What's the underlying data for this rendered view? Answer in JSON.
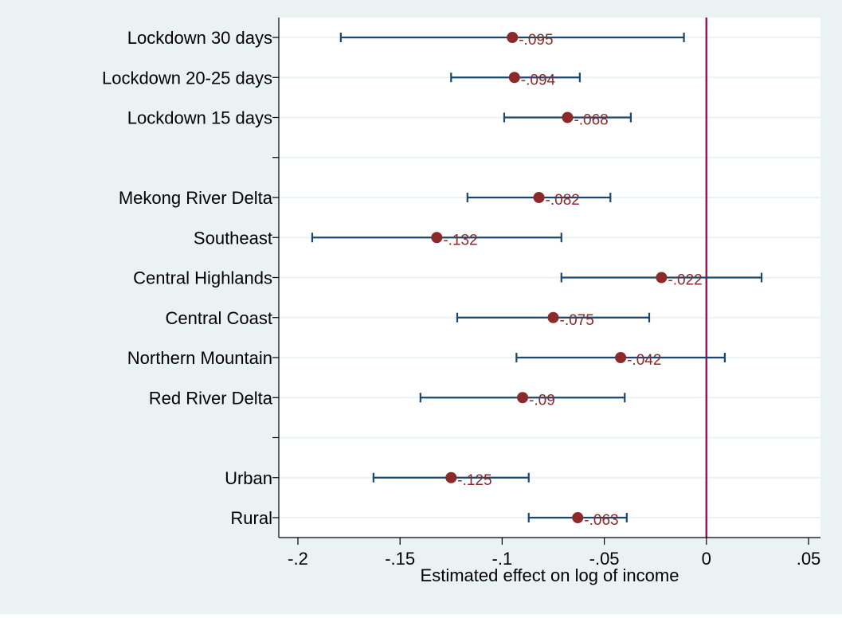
{
  "chart_data": {
    "type": "coefficient_plot",
    "xlabel": "Estimated effect on log of income",
    "xlim": [
      -0.2,
      0.05
    ],
    "x_ticks": [
      {
        "value": -0.2,
        "label": "-.2"
      },
      {
        "value": -0.15,
        "label": "-.15"
      },
      {
        "value": -0.1,
        "label": "-.1"
      },
      {
        "value": -0.05,
        "label": "-.05"
      },
      {
        "value": 0,
        "label": "0"
      },
      {
        "value": 0.05,
        "label": ".05"
      }
    ],
    "reference_line": 0,
    "grid": "horizontal",
    "rows": [
      {
        "label": "Lockdown 30 days",
        "estimate": -0.095,
        "ci_low": -0.179,
        "ci_high": -0.011,
        "value_label": "-.095"
      },
      {
        "label": "Lockdown 20-25 days",
        "estimate": -0.094,
        "ci_low": -0.125,
        "ci_high": -0.062,
        "value_label": "-.094"
      },
      {
        "label": "Lockdown 15 days",
        "estimate": -0.068,
        "ci_low": -0.099,
        "ci_high": -0.037,
        "value_label": "-.068"
      },
      {
        "label": "",
        "estimate": null
      },
      {
        "label": "Mekong River Delta",
        "estimate": -0.082,
        "ci_low": -0.117,
        "ci_high": -0.047,
        "value_label": "-.082"
      },
      {
        "label": "Southeast",
        "estimate": -0.132,
        "ci_low": -0.193,
        "ci_high": -0.071,
        "value_label": "-.132"
      },
      {
        "label": "Central Highlands",
        "estimate": -0.022,
        "ci_low": -0.071,
        "ci_high": 0.027,
        "value_label": "-.022"
      },
      {
        "label": "Central Coast",
        "estimate": -0.075,
        "ci_low": -0.122,
        "ci_high": -0.028,
        "value_label": "-.075"
      },
      {
        "label": "Northern Mountain",
        "estimate": -0.042,
        "ci_low": -0.093,
        "ci_high": 0.009,
        "value_label": "-.042"
      },
      {
        "label": "Red River Delta",
        "estimate": -0.09,
        "ci_low": -0.14,
        "ci_high": -0.04,
        "value_label": "-.09"
      },
      {
        "label": "",
        "estimate": null
      },
      {
        "label": "Urban",
        "estimate": -0.125,
        "ci_low": -0.163,
        "ci_high": -0.087,
        "value_label": "-.125"
      },
      {
        "label": "Rural",
        "estimate": -0.063,
        "ci_low": -0.087,
        "ci_high": -0.039,
        "value_label": "-.063"
      }
    ],
    "colors": {
      "background": "#eaf2f3",
      "plot_area": "#ffffff",
      "gridline": "#eaf2f3",
      "marker": "#8c2a2a",
      "ci_line": "#1a476f",
      "reference_line": "#a0144f",
      "value_label": "#8c2a2a",
      "text": "#000000"
    }
  }
}
